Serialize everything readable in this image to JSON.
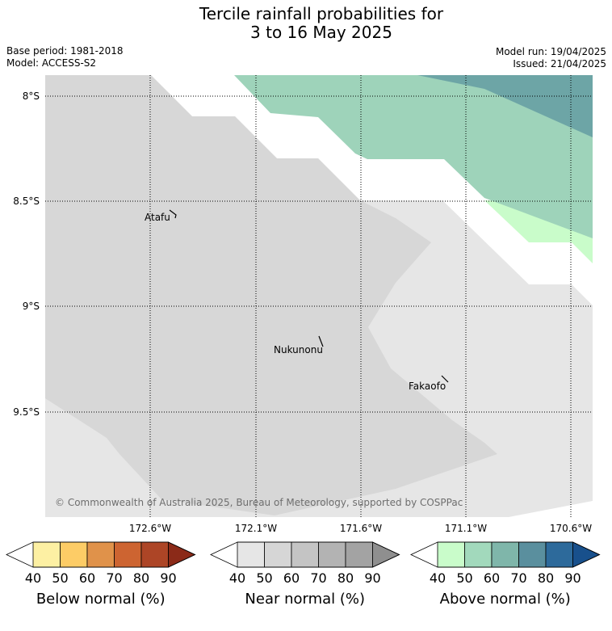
{
  "title": {
    "line1": "Tercile rainfall probabilities for",
    "line2": "3 to 16 May 2025"
  },
  "meta": {
    "base_period": "Base period: 1981-2018",
    "model": "Model: ACCESS-S2",
    "model_run": "Model run: 19/04/2025",
    "issued": "Issued: 21/04/2025"
  },
  "map": {
    "lat_labels": [
      "8°S",
      "8.5°S",
      "9°S",
      "9.5°S"
    ],
    "lon_labels": [
      "172.6°W",
      "172.1°W",
      "171.6°W",
      "171.1°W",
      "170.6°W"
    ],
    "places": [
      "Atafu",
      "Nukunonu",
      "Fakaofo"
    ],
    "copyright": "© Commonwealth of Australia 2025, Bureau of Meteorology, supported by COSPPac",
    "colors": {
      "near_40": "#e6e6e6",
      "near_50": "#d7d7d7",
      "above_40": "#c9fcca",
      "above_50": "#9ed3ba",
      "above_60": "#6da5a6"
    }
  },
  "colorbars": [
    {
      "name": "below",
      "label": "Below normal (%)",
      "ticks": [
        "40",
        "50",
        "60",
        "70",
        "80",
        "90"
      ],
      "colors": [
        "#fdf0a3",
        "#fdcc66",
        "#e0924a",
        "#cd6431",
        "#ad4526",
        "#8b2a18"
      ]
    },
    {
      "name": "near",
      "label": "Near normal (%)",
      "ticks": [
        "40",
        "50",
        "60",
        "70",
        "80",
        "90"
      ],
      "colors": [
        "#e6e6e6",
        "#d6d6d6",
        "#c4c4c4",
        "#b3b3b3",
        "#a3a3a3",
        "#8f8f8f"
      ]
    },
    {
      "name": "above",
      "label": "Above normal (%)",
      "ticks": [
        "40",
        "50",
        "60",
        "70",
        "80",
        "90"
      ],
      "colors": [
        "#c9fcca",
        "#a2d9bc",
        "#7fb6aa",
        "#5a8f9e",
        "#2d6a9b",
        "#18508c"
      ]
    }
  ]
}
